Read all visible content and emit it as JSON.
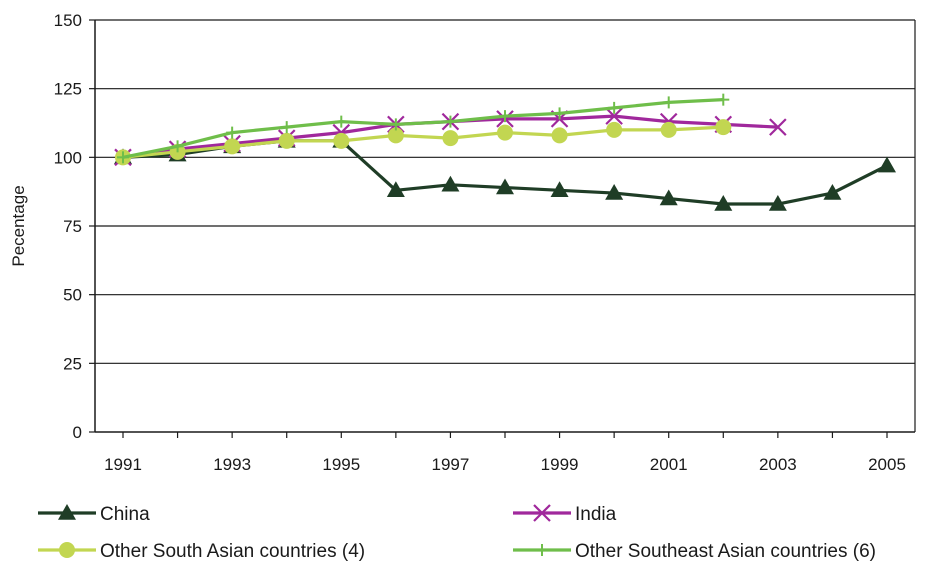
{
  "chart_data": {
    "type": "line",
    "title": "",
    "xlabel": "",
    "ylabel": "Pecentage",
    "ylim": [
      0,
      150
    ],
    "xlim": [
      1991,
      2005
    ],
    "yticks": [
      "0",
      "25",
      "50",
      "75",
      "100",
      "125",
      "150"
    ],
    "xticks": [
      "1991",
      "1993",
      "1995",
      "1997",
      "1999",
      "2001",
      "2003",
      "2005"
    ],
    "grid": "horizontal",
    "legend_position": "bottom",
    "series": [
      {
        "name": "China",
        "color": "#1f3d26",
        "marker": "triangle",
        "x": [
          1991,
          1992,
          1993,
          1994,
          1995,
          1996,
          1997,
          1998,
          1999,
          2000,
          2001,
          2002,
          2003,
          2004,
          2005
        ],
        "values": [
          100,
          101,
          104,
          106,
          106,
          88,
          90,
          89,
          88,
          87,
          85,
          83,
          83,
          87,
          97
        ]
      },
      {
        "name": "India",
        "color": "#a0289c",
        "marker": "x",
        "x": [
          1991,
          1992,
          1993,
          1994,
          1995,
          1996,
          1997,
          1998,
          1999,
          2000,
          2001,
          2002,
          2003
        ],
        "values": [
          100,
          103,
          105,
          107,
          109,
          112,
          113,
          114,
          114,
          115,
          113,
          112,
          111
        ]
      },
      {
        "name": "Other South Asian countries (4)",
        "color": "#c2d651",
        "marker": "circle",
        "x": [
          1991,
          1992,
          1993,
          1994,
          1995,
          1996,
          1997,
          1998,
          1999,
          2000,
          2001,
          2002
        ],
        "values": [
          100,
          102,
          104,
          106,
          106,
          108,
          107,
          109,
          108,
          110,
          110,
          111
        ]
      },
      {
        "name": "Other Southeast Asian countries (6)",
        "color": "#6fbe4a",
        "marker": "plus",
        "x": [
          1991,
          1992,
          1993,
          1994,
          1995,
          1996,
          1997,
          1998,
          1999,
          2000,
          2001,
          2002
        ],
        "values": [
          100,
          104,
          109,
          111,
          113,
          112,
          113,
          115,
          116,
          118,
          120,
          121
        ]
      }
    ]
  }
}
